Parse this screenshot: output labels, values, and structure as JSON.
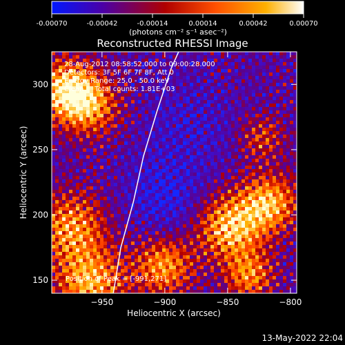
{
  "colorbar": {
    "ticks": [
      "-0.00070",
      "-0.00042",
      "-0.00014",
      "0.00014",
      "0.00042",
      "0.00070"
    ],
    "units": "(photons cm⁻² s⁻¹ asec⁻²)",
    "range": [
      -0.0007,
      0.0007
    ],
    "colors": [
      "#0018ff",
      "#4a00a8",
      "#b00000",
      "#ff5000",
      "#ffb000",
      "#ffffff"
    ]
  },
  "chart_data": {
    "type": "heatmap",
    "title": "Reconstructed RHESSI Image",
    "xlabel": "Heliocentric X (arcsec)",
    "ylabel": "Heliocentric Y (arcsec)",
    "xlim": [
      -990,
      -795
    ],
    "ylim": [
      140,
      325
    ],
    "xticks": [
      -950,
      -900,
      -850,
      -800
    ],
    "yticks": [
      150,
      200,
      250,
      300
    ],
    "xtick_labels": [
      "−950",
      "−900",
      "−850",
      "−800"
    ],
    "ytick_labels": [
      "150",
      "200",
      "250",
      "300"
    ],
    "annotations": [
      "28-Aug-2012 08:58:52.000 to 09:00:28.000",
      "Detectors: 3F 5F 6F 7F 8F, Att 0",
      "Energy Range: 25.0 - 50.0 keV",
      "Clean     Total counts: 1.81E+03"
    ],
    "peak_label": "Position of Peak = [-991,271]",
    "limb": [
      [
        -941,
        140
      ],
      [
        -935,
        175
      ],
      [
        -925,
        210
      ],
      [
        -917,
        245
      ],
      [
        -906,
        280
      ],
      [
        -895,
        312
      ],
      [
        -889,
        325
      ]
    ]
  },
  "timestamp": "13-May-2022 22:04"
}
